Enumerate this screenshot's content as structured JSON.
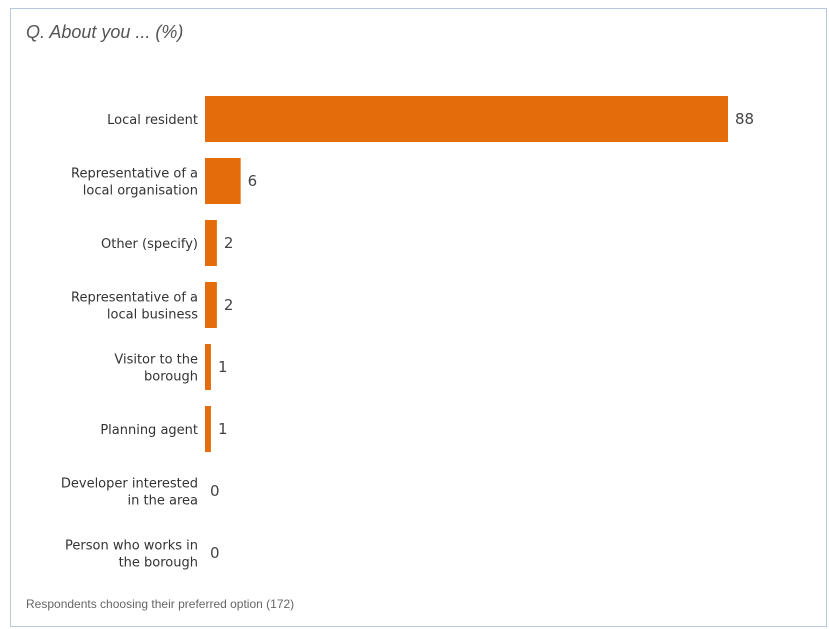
{
  "chart_data": {
    "type": "bar",
    "orientation": "horizontal",
    "title": "Q. About you ... (%)",
    "footnote": "Respondents choosing their preferred option (172)",
    "unit": "%",
    "bar_color": "#e46c0a",
    "grid": false,
    "legend": "none",
    "xlim": [
      0,
      88
    ],
    "categories": [
      [
        "Local resident"
      ],
      [
        "Representative of a",
        "local organisation"
      ],
      [
        "Other (specify)"
      ],
      [
        "Representative of a",
        "local business"
      ],
      [
        "Visitor to the",
        "borough"
      ],
      [
        "Planning agent"
      ],
      [
        "Developer interested",
        "in the area"
      ],
      [
        "Person who works in",
        "the borough"
      ]
    ],
    "values": [
      88,
      6,
      2,
      2,
      1,
      1,
      0,
      0
    ]
  }
}
